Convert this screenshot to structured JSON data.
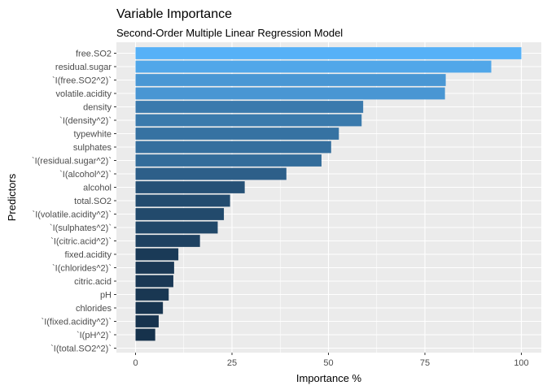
{
  "chart_data": {
    "type": "bar",
    "orientation": "horizontal",
    "title": "Variable Importance",
    "subtitle": "Second-Order Multiple Linear Regression Model",
    "xlabel": "Importance %",
    "ylabel": "Predictors",
    "xlim": [
      0,
      100
    ],
    "xticks": [
      "0",
      "25",
      "50",
      "75",
      "100"
    ],
    "grid": true,
    "colors": {
      "panel": "#EBEBEB",
      "grid": "#FFFFFF",
      "low": "#132B43",
      "high": "#56B1F7",
      "text": "#4D4D4D",
      "title": "#000000"
    },
    "categories": [
      "free.SO2",
      "residual.sugar",
      "`I(free.SO2^2)`",
      "volatile.acidity",
      "density",
      "`I(density^2)`",
      "typewhite",
      "sulphates",
      "`I(residual.sugar^2)`",
      "`I(alcohol^2)`",
      "alcohol",
      "total.SO2",
      "`I(volatile.acidity^2)`",
      "`I(sulphates^2)`",
      "`I(citric.acid^2)`",
      "fixed.acidity",
      "`I(chlorides^2)`",
      "citric.acid",
      "pH",
      "chlorides",
      "`I(fixed.acidity^2)`",
      "`I(pH^2)`",
      "`I(total.SO2^2)`"
    ],
    "values": [
      100,
      92.2,
      80.4,
      80.2,
      59.0,
      58.6,
      52.7,
      50.7,
      48.2,
      39.1,
      28.3,
      24.5,
      22.9,
      21.3,
      16.7,
      11.1,
      10.0,
      9.8,
      8.6,
      7.1,
      6.0,
      5.1,
      0
    ]
  }
}
